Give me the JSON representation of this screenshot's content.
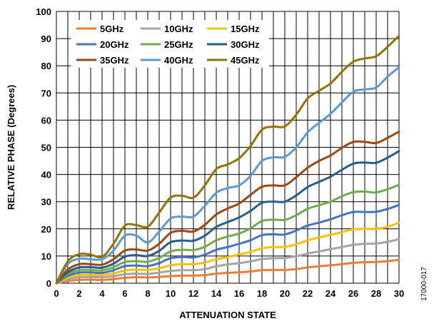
{
  "chart_data": {
    "type": "line",
    "title": "",
    "xlabel": "ATTENUATION STATE",
    "ylabel": "RELATIVE PHASE (Degrees)",
    "xlim": [
      0,
      30
    ],
    "ylim": [
      0,
      100
    ],
    "x_ticks": [
      0,
      2,
      4,
      6,
      8,
      10,
      12,
      14,
      16,
      18,
      20,
      22,
      24,
      26,
      28,
      30
    ],
    "y_ticks": [
      0,
      10,
      20,
      30,
      40,
      50,
      60,
      70,
      80,
      90,
      100
    ],
    "grid": true,
    "legend_position": "top-left",
    "x": [
      0,
      1,
      2,
      3,
      4,
      5,
      6,
      7,
      8,
      9,
      10,
      11,
      12,
      13,
      14,
      15,
      16,
      17,
      18,
      19,
      20,
      21,
      22,
      23,
      24,
      25,
      26,
      27,
      28,
      29,
      30
    ],
    "series": [
      {
        "name": "5GHz",
        "color": "#ED7D31",
        "values": [
          0,
          0.8,
          1.2,
          1.3,
          1.2,
          1.5,
          2.0,
          2.2,
          2.1,
          2.3,
          2.6,
          2.8,
          2.8,
          3.0,
          3.5,
          3.8,
          4.0,
          4.3,
          4.8,
          4.9,
          4.9,
          5.2,
          5.8,
          6.2,
          6.6,
          7.0,
          7.5,
          7.7,
          7.8,
          8.1,
          8.6
        ]
      },
      {
        "name": "10GHz",
        "color": "#A5A5A5",
        "values": [
          0,
          1.5,
          2.2,
          2.3,
          2.2,
          2.6,
          3.3,
          3.5,
          3.4,
          3.9,
          4.5,
          4.8,
          4.8,
          5.2,
          6.2,
          6.9,
          7.4,
          8.0,
          8.9,
          9.2,
          9.3,
          9.9,
          10.9,
          11.7,
          12.5,
          13.3,
          14.1,
          14.5,
          14.6,
          15.2,
          16.2
        ]
      },
      {
        "name": "15GHz",
        "color": "#FFC000",
        "values": [
          0,
          2.0,
          3.0,
          3.1,
          3.0,
          3.6,
          4.7,
          5.0,
          4.9,
          5.5,
          6.6,
          7.0,
          7.0,
          7.6,
          8.8,
          9.6,
          10.6,
          11.5,
          12.9,
          13.3,
          13.4,
          14.3,
          15.8,
          16.8,
          17.8,
          18.8,
          19.8,
          20.0,
          20.0,
          20.8,
          22.2
        ]
      },
      {
        "name": "20GHz",
        "color": "#4472C4",
        "values": [
          0,
          2.7,
          3.9,
          4.0,
          3.8,
          4.8,
          6.3,
          6.5,
          6.3,
          7.4,
          9.2,
          9.6,
          9.5,
          10.5,
          12.3,
          13.3,
          14.5,
          15.8,
          17.7,
          18.0,
          17.9,
          19.4,
          21.2,
          22.3,
          23.5,
          25.0,
          26.2,
          26.2,
          26.3,
          27.3,
          28.8
        ]
      },
      {
        "name": "25GHz",
        "color": "#70AD47",
        "values": [
          0,
          3.3,
          4.8,
          4.9,
          4.7,
          5.9,
          7.8,
          8.1,
          7.9,
          9.3,
          11.7,
          12.3,
          12.2,
          13.4,
          15.8,
          17.2,
          18.3,
          20.2,
          22.9,
          23.4,
          23.3,
          25.0,
          27.4,
          28.7,
          30.0,
          32.0,
          33.5,
          33.7,
          33.4,
          34.6,
          36.2
        ]
      },
      {
        "name": "30GHz",
        "color": "#255E91",
        "values": [
          0,
          4.0,
          5.8,
          5.9,
          5.7,
          7.2,
          9.8,
          10.3,
          10.0,
          11.9,
          15.1,
          15.7,
          15.6,
          17.5,
          20.7,
          22.5,
          24.2,
          26.6,
          29.6,
          30.0,
          30.0,
          32.3,
          35.4,
          37.3,
          39.2,
          41.7,
          44.0,
          44.4,
          44.3,
          46.2,
          48.6
        ]
      },
      {
        "name": "35GHz",
        "color": "#9E480E",
        "values": [
          0,
          5.0,
          7.0,
          7.0,
          6.8,
          8.8,
          12.0,
          12.4,
          12.0,
          14.5,
          18.5,
          19.3,
          19.0,
          21.5,
          25.3,
          27.5,
          29.3,
          32.5,
          35.5,
          36.0,
          36.0,
          39.0,
          42.5,
          45.0,
          47.0,
          49.8,
          52.0,
          52.0,
          51.6,
          53.5,
          55.8
        ]
      },
      {
        "name": "40GHz",
        "color": "#5B9BD5",
        "values": [
          0,
          7.0,
          9.0,
          8.8,
          8.8,
          12.0,
          17.5,
          17.5,
          15.0,
          19.0,
          23.8,
          24.5,
          24.5,
          28.5,
          33.3,
          35.0,
          36.0,
          39.5,
          45.0,
          46.3,
          46.5,
          50.0,
          55.5,
          59.0,
          62.3,
          66.5,
          70.5,
          71.3,
          72.0,
          76.0,
          79.5
        ]
      },
      {
        "name": "45GHz",
        "color": "#997300",
        "values": [
          0,
          8.0,
          10.7,
          10.5,
          9.7,
          14.5,
          21.2,
          21.4,
          20.8,
          26.0,
          31.5,
          32.2,
          31.5,
          36.0,
          42.0,
          43.7,
          46.0,
          50.5,
          56.5,
          57.6,
          57.7,
          62.0,
          68.0,
          70.8,
          73.5,
          77.8,
          81.5,
          82.7,
          83.5,
          87.0,
          91.0
        ]
      }
    ]
  },
  "figure_code": "17000-017"
}
